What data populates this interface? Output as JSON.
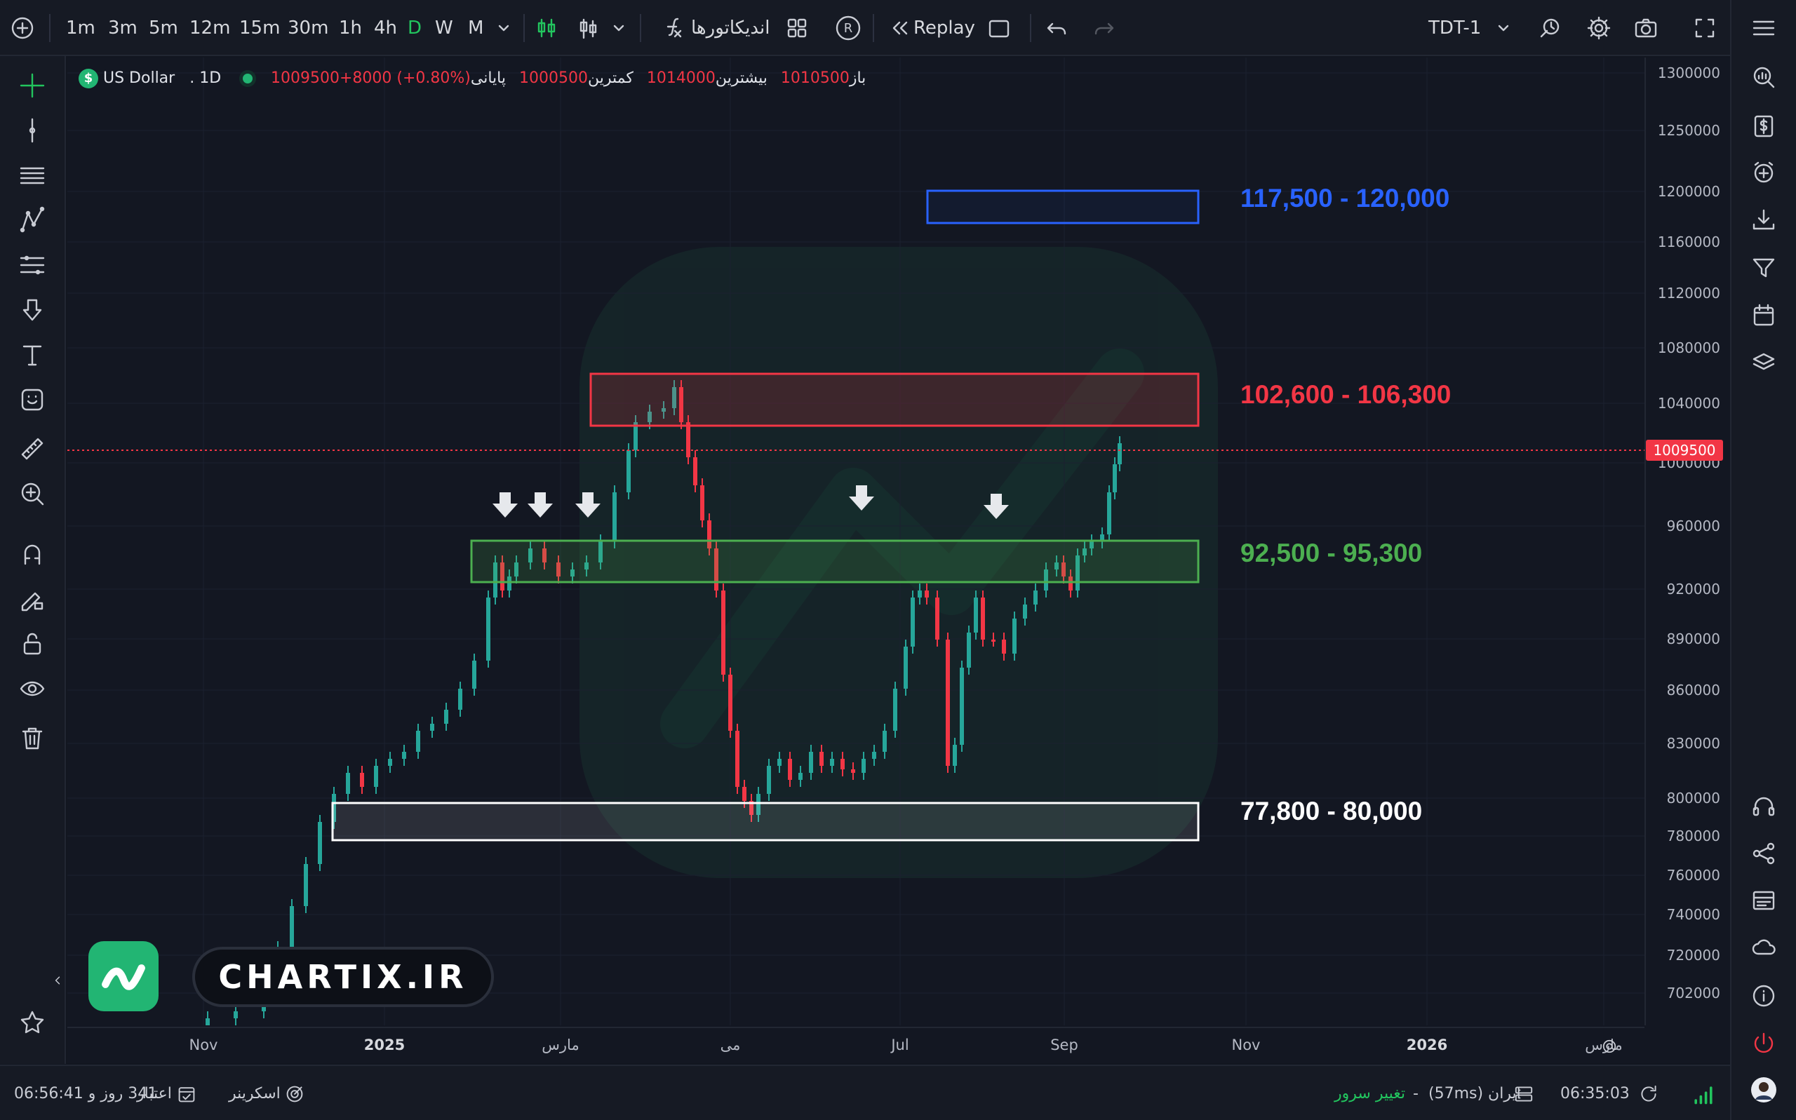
{
  "topbar": {
    "timeframes": [
      "1m",
      "3m",
      "5m",
      "12m",
      "15m",
      "30m",
      "1h",
      "4h",
      "D",
      "W",
      "M"
    ],
    "active_timeframe": "D",
    "indicators_label": "اندیکاتورها",
    "replay_label": "Replay",
    "r_badge": "R",
    "symbol_code": "TDT-1"
  },
  "legend": {
    "symbol_name": "US Dollar",
    "interval": ". 1D",
    "open_label": "باز",
    "open_value": "1010500",
    "high_label": "بیشترین",
    "high_value": "1014000",
    "low_label": "کمترین",
    "low_value": "1000500",
    "close_label": "پایانی",
    "close_value": "1009500+8000 (+0.80%)"
  },
  "zones": [
    {
      "label": "117,500 - 120,000",
      "color": "#2962ff"
    },
    {
      "label": "102,600 - 106,300",
      "color": "#f23645"
    },
    {
      "label": "92,500 - 95,300",
      "color": "#4caf50"
    },
    {
      "label": "77,800 - 80,000",
      "color": "#ffffff"
    }
  ],
  "price_axis": {
    "ticks": [
      "1300000",
      "1250000",
      "1200000",
      "1160000",
      "1120000",
      "1080000",
      "1040000",
      "1000000",
      "960000",
      "920000",
      "890000",
      "860000",
      "830000",
      "800000",
      "780000",
      "760000",
      "740000",
      "720000",
      "702000"
    ],
    "last_price": "1009500"
  },
  "time_axis": {
    "ticks": [
      "Nov",
      "2025",
      "مارس",
      "می",
      "Jul",
      "Sep",
      "Nov",
      "2026",
      "مارس"
    ],
    "bold": [
      "2025",
      "2026"
    ]
  },
  "watermark": {
    "brand": "CHARTIX.IR"
  },
  "bottombar": {
    "credit_label": "اعتبار",
    "credit_value": "341 روز و 06:56:41",
    "screener_label": "اسکرینر",
    "change_server_label": "تغییر سرور",
    "server_status": "ایران (57ms)",
    "dash": "-",
    "clock": "06:35:03"
  },
  "colors": {
    "up": "#26a69a",
    "down": "#f23645",
    "background": "#131722",
    "accent": "#22b573"
  }
}
